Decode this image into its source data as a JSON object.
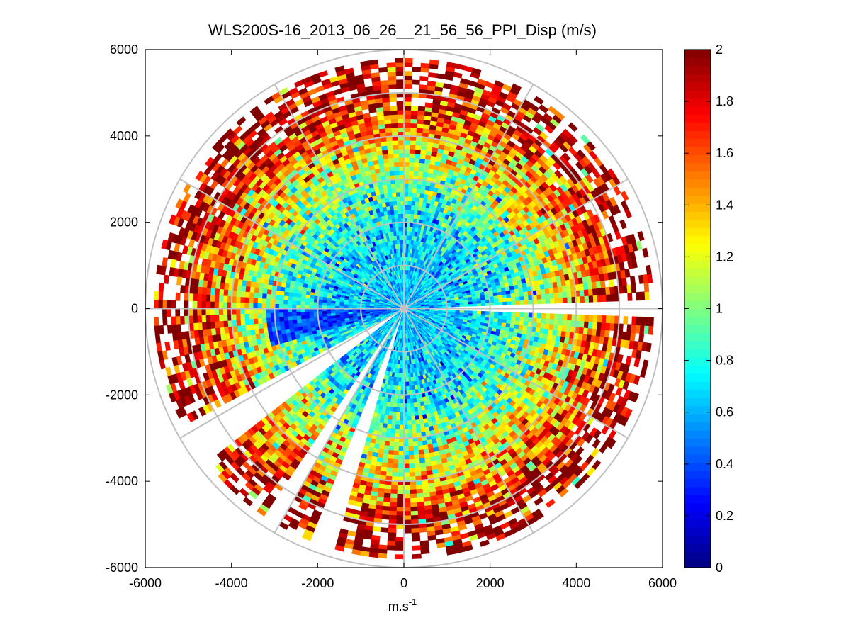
{
  "chart_data": {
    "type": "heatmap",
    "subtype": "polar-ppi",
    "title": "WLS200S-16_2013_06_26__21_56_56_PPI_Disp (m/s)",
    "xlabel_base": "m.s",
    "xlabel_exponent": "-1",
    "ylabel": "",
    "xlim": [
      -6000,
      6000
    ],
    "ylim": [
      -6000,
      6000
    ],
    "x_ticks": [
      -6000,
      -4000,
      -2000,
      0,
      2000,
      4000,
      6000
    ],
    "y_ticks": [
      -6000,
      -4000,
      -2000,
      0,
      2000,
      4000,
      6000
    ],
    "x_tick_labels": [
      "-6000",
      "-4000",
      "-2000",
      "0",
      "2000",
      "4000",
      "6000"
    ],
    "y_tick_labels": [
      "-6000",
      "-4000",
      "-2000",
      "0",
      "2000",
      "4000",
      "6000"
    ],
    "polar_grid": {
      "ring_radii": [
        1000,
        2000,
        3000,
        4000,
        5000,
        6000
      ],
      "spoke_angles_deg": [
        0,
        30,
        60,
        90,
        120,
        150,
        180,
        210,
        240,
        270,
        300,
        330
      ]
    },
    "colorbar": {
      "colormap": "jet",
      "min": 0,
      "max": 2,
      "ticks": [
        0,
        0.2,
        0.4,
        0.6,
        0.8,
        1,
        1.2,
        1.4,
        1.6,
        1.8,
        2
      ],
      "tick_labels": [
        "0",
        "0.2",
        "0.4",
        "0.6",
        "0.8",
        "1",
        "1.2",
        "1.4",
        "1.6",
        "1.8",
        "2"
      ]
    },
    "data_description": {
      "max_range": 5800,
      "gate_spacing": 100,
      "beam_width_deg": 2,
      "empty_sectors_deg": [
        [
          -1.5,
          1.5
        ],
        [
          236,
          240
        ],
        [
          248,
          253
        ],
        [
          208,
          218
        ]
      ],
      "radial_profile": [
        {
          "r": 0,
          "value": 0.6
        },
        {
          "r": 2000,
          "value": 0.72
        },
        {
          "r": 3000,
          "value": 1.0
        },
        {
          "r": 4000,
          "value": 1.35
        },
        {
          "r": 5000,
          "value": 1.8
        },
        {
          "r": 5800,
          "value": 1.95
        }
      ],
      "low_value_region": {
        "angle_from_deg": 180,
        "angle_to_deg": 196,
        "range_from": 300,
        "range_to": 3200,
        "value": 0.4
      }
    }
  }
}
